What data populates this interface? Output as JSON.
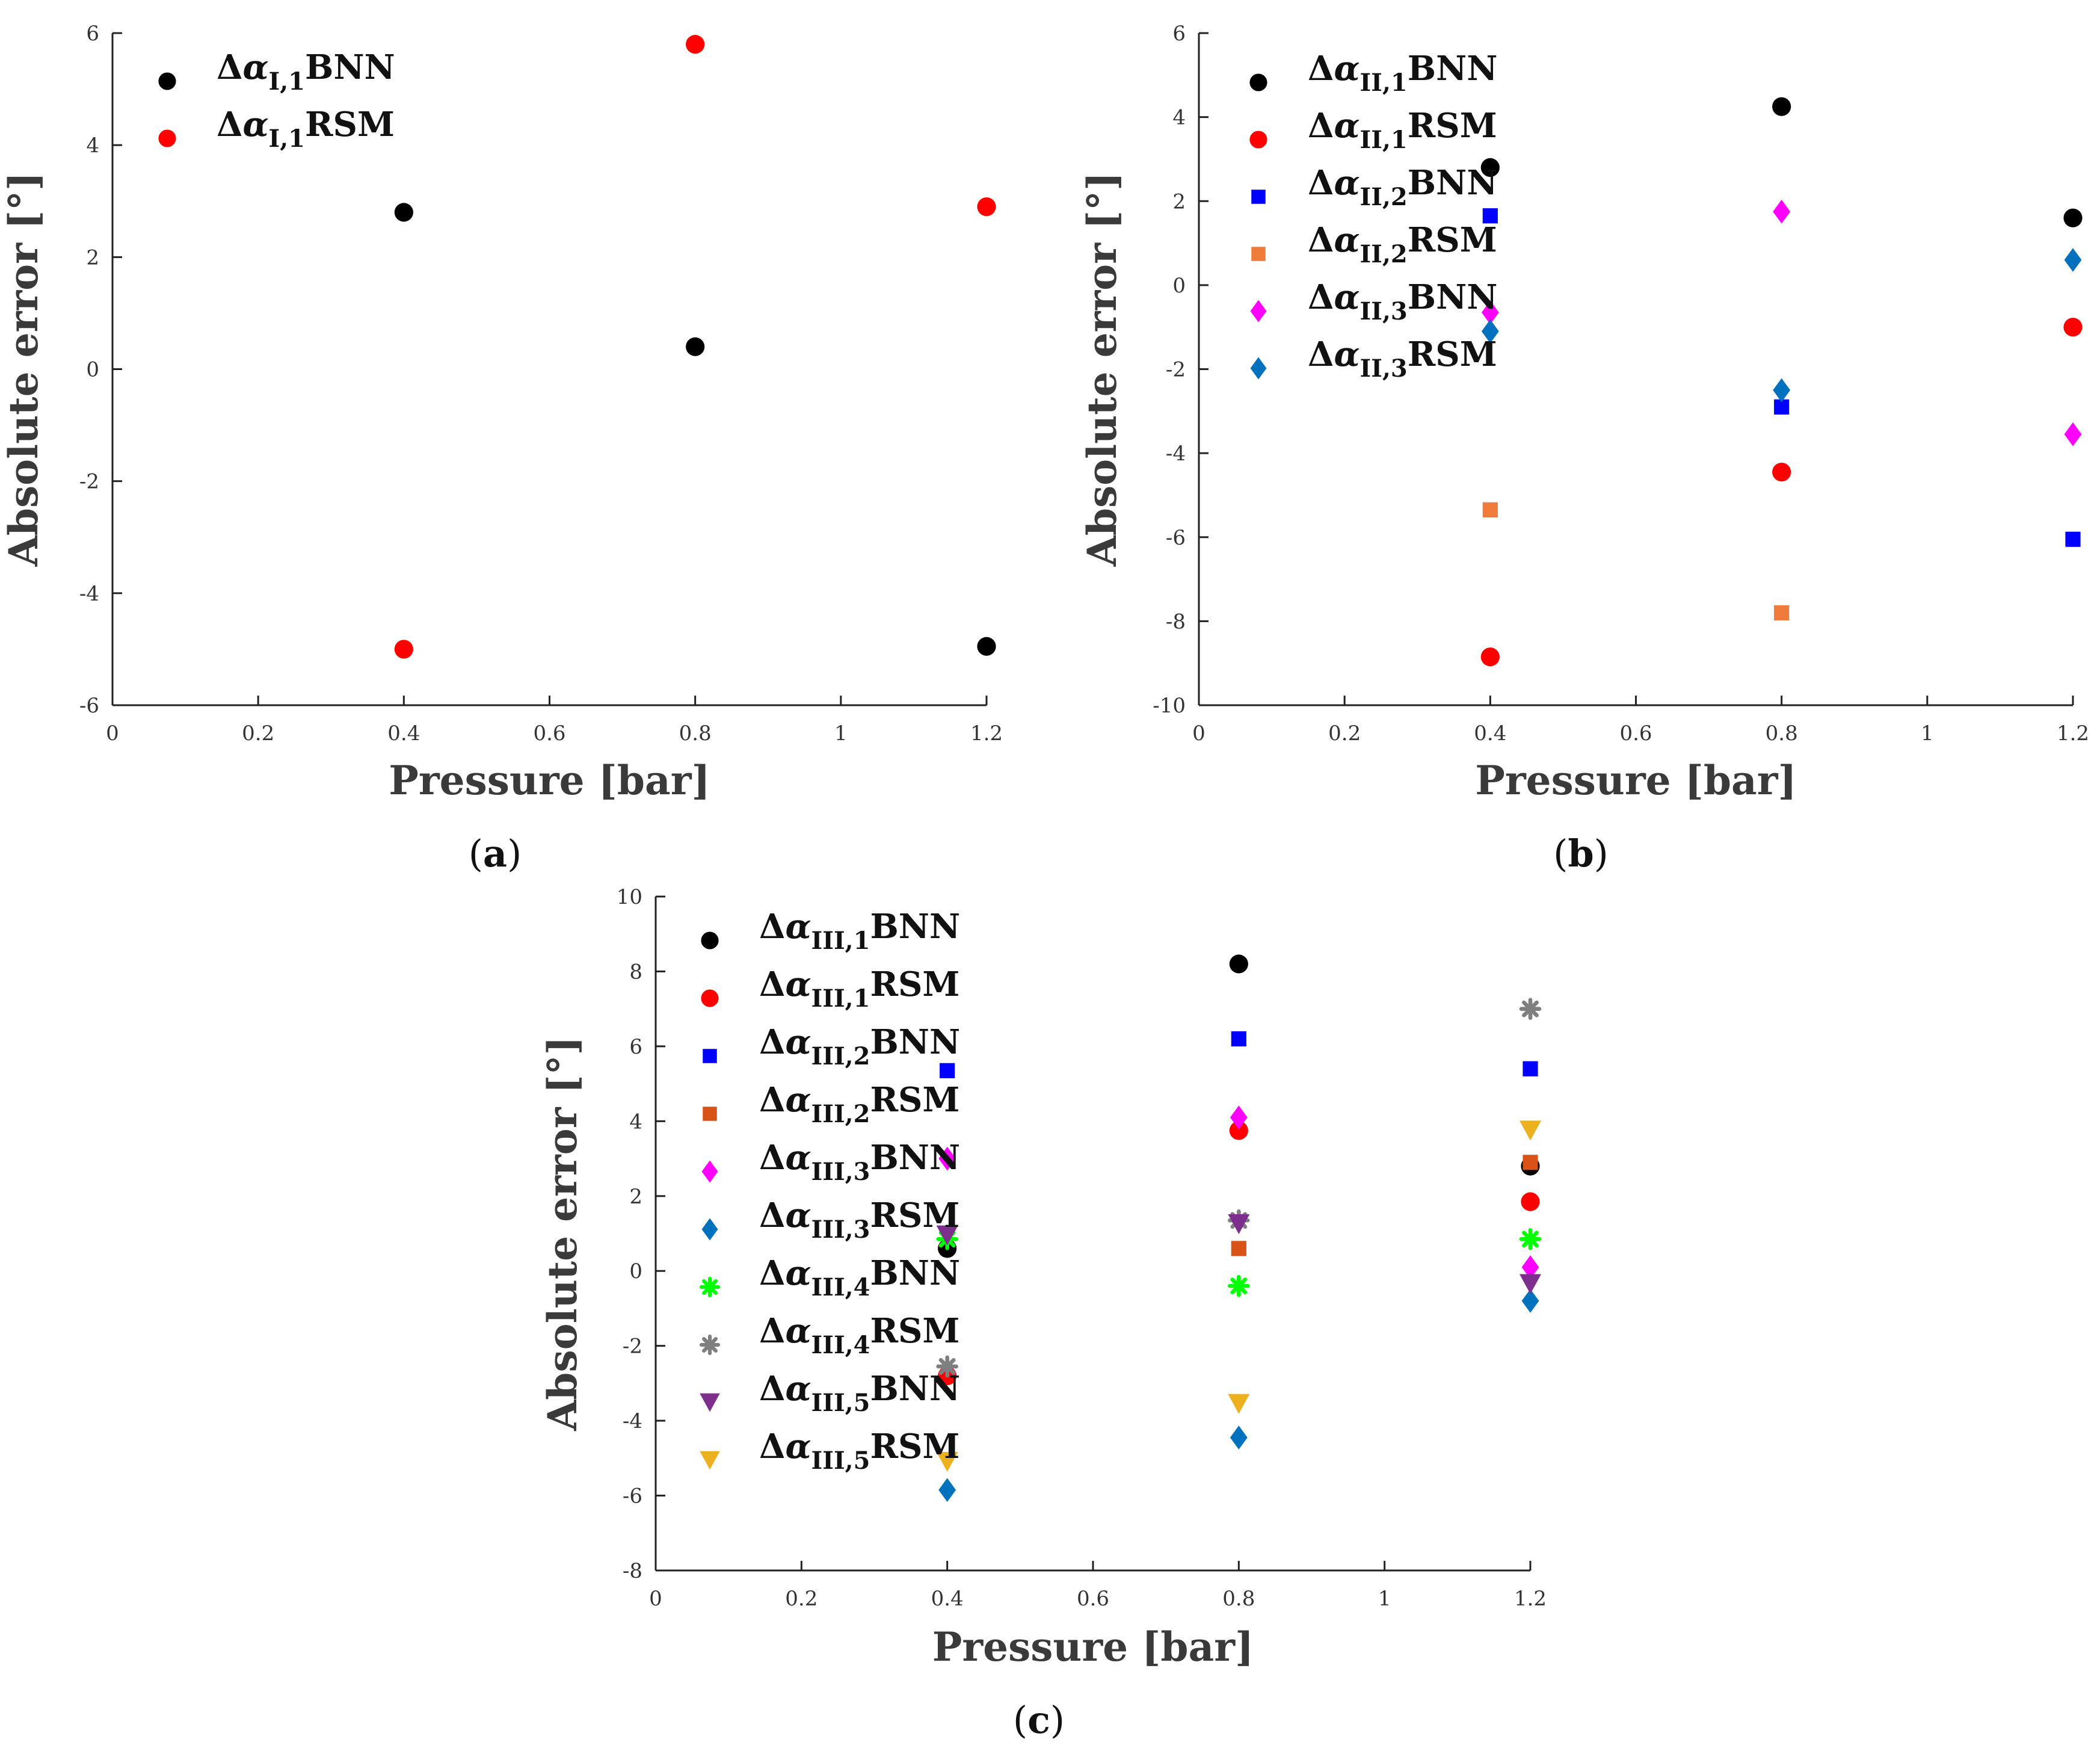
{
  "chart_data": [
    {
      "type": "scatter",
      "panel": "a",
      "xlabel": "Pressure [bar]",
      "ylabel": "Absolute error [°]",
      "xlim": [
        0,
        1.2
      ],
      "ylim": [
        -6,
        6
      ],
      "xticks": [
        0,
        0.2,
        0.4,
        0.6,
        0.8,
        1,
        1.2
      ],
      "yticks": [
        -6,
        -4,
        -2,
        0,
        2,
        4,
        6
      ],
      "series": [
        {
          "sub": "I,1",
          "method": "BNN",
          "color": "#000000",
          "marker": "circle",
          "x": [
            0.4,
            0.8,
            1.2
          ],
          "y": [
            2.8,
            0.4,
            -4.95
          ]
        },
        {
          "sub": "I,1",
          "method": "RSM",
          "color": "#ff0000",
          "marker": "circle",
          "x": [
            0.4,
            0.8,
            1.2
          ],
          "y": [
            -5.0,
            5.8,
            2.9
          ]
        }
      ]
    },
    {
      "type": "scatter",
      "panel": "b",
      "xlabel": "Pressure [bar]",
      "ylabel": "Absolute error [°]",
      "xlim": [
        0,
        1.2
      ],
      "ylim": [
        -10,
        6
      ],
      "xticks": [
        0,
        0.2,
        0.4,
        0.6,
        0.8,
        1,
        1.2
      ],
      "yticks": [
        -10,
        -8,
        -6,
        -4,
        -2,
        0,
        2,
        4,
        6
      ],
      "series": [
        {
          "sub": "II,1",
          "method": "BNN",
          "color": "#000000",
          "marker": "circle",
          "x": [
            0.4,
            0.8,
            1.2
          ],
          "y": [
            2.8,
            4.25,
            1.6
          ]
        },
        {
          "sub": "II,1",
          "method": "RSM",
          "color": "#ff0000",
          "marker": "circle",
          "x": [
            0.4,
            0.8,
            1.2
          ],
          "y": [
            -8.85,
            -4.45,
            -1.0
          ]
        },
        {
          "sub": "II,2",
          "method": "BNN",
          "color": "#0000ff",
          "marker": "square",
          "x": [
            0.4,
            0.8,
            1.2
          ],
          "y": [
            1.65,
            -2.9,
            -6.05
          ]
        },
        {
          "sub": "II,2",
          "method": "RSM",
          "color": "#f07c3c",
          "marker": "square",
          "x": [
            0.4,
            0.8
          ],
          "y": [
            -5.35,
            -7.8
          ]
        },
        {
          "sub": "II,3",
          "method": "BNN",
          "color": "#ff00ff",
          "marker": "diamond",
          "x": [
            0.4,
            0.8,
            1.2
          ],
          "y": [
            -0.65,
            1.75,
            -3.55
          ]
        },
        {
          "sub": "II,3",
          "method": "RSM",
          "color": "#0072bd",
          "marker": "diamond",
          "x": [
            0.4,
            0.8,
            1.2
          ],
          "y": [
            -1.1,
            -2.5,
            0.6
          ]
        }
      ]
    },
    {
      "type": "scatter",
      "panel": "c",
      "xlabel": "Pressure [bar]",
      "ylabel": "Absolute error [°]",
      "xlim": [
        0,
        1.2
      ],
      "ylim": [
        -8,
        10
      ],
      "xticks": [
        0,
        0.2,
        0.4,
        0.6,
        0.8,
        1,
        1.2
      ],
      "yticks": [
        -8,
        -6,
        -4,
        -2,
        0,
        2,
        4,
        6,
        8,
        10
      ],
      "series": [
        {
          "sub": "III,1",
          "method": "BNN",
          "color": "#000000",
          "marker": "circle",
          "x": [
            0.4,
            0.8,
            1.2
          ],
          "y": [
            0.6,
            8.2,
            2.8
          ]
        },
        {
          "sub": "III,1",
          "method": "RSM",
          "color": "#ff0000",
          "marker": "circle",
          "x": [
            0.4,
            0.8,
            1.2
          ],
          "y": [
            -2.8,
            3.75,
            1.85
          ]
        },
        {
          "sub": "III,2",
          "method": "BNN",
          "color": "#0000ff",
          "marker": "square",
          "x": [
            0.4,
            0.8,
            1.2
          ],
          "y": [
            5.35,
            6.2,
            5.4
          ]
        },
        {
          "sub": "III,2",
          "method": "RSM",
          "color": "#d95319",
          "marker": "square",
          "x": [
            0.8,
            1.2
          ],
          "y": [
            0.6,
            2.9
          ]
        },
        {
          "sub": "III,3",
          "method": "BNN",
          "color": "#ff00ff",
          "marker": "diamond",
          "x": [
            0.4,
            0.8,
            1.2
          ],
          "y": [
            3.0,
            4.1,
            0.1
          ]
        },
        {
          "sub": "III,3",
          "method": "RSM",
          "color": "#0072bd",
          "marker": "diamond",
          "x": [
            0.4,
            0.8,
            1.2
          ],
          "y": [
            -5.85,
            -4.45,
            -0.8
          ]
        },
        {
          "sub": "III,4",
          "method": "BNN",
          "color": "#00ff00",
          "marker": "star",
          "x": [
            0.4,
            0.8,
            1.2
          ],
          "y": [
            0.85,
            -0.4,
            0.85
          ]
        },
        {
          "sub": "III,4",
          "method": "RSM",
          "color": "#7f7f7f",
          "marker": "star",
          "x": [
            0.4,
            0.8,
            1.2
          ],
          "y": [
            -2.55,
            1.35,
            7.0
          ]
        },
        {
          "sub": "III,5",
          "method": "BNN",
          "color": "#7e2f8e",
          "marker": "triangle-down",
          "x": [
            0.4,
            0.8,
            1.2
          ],
          "y": [
            0.95,
            1.25,
            -0.35
          ]
        },
        {
          "sub": "III,5",
          "method": "RSM",
          "color": "#edb120",
          "marker": "triangle-down",
          "x": [
            0.4,
            0.8,
            1.2
          ],
          "y": [
            -5.1,
            -3.55,
            3.75
          ]
        }
      ]
    }
  ]
}
